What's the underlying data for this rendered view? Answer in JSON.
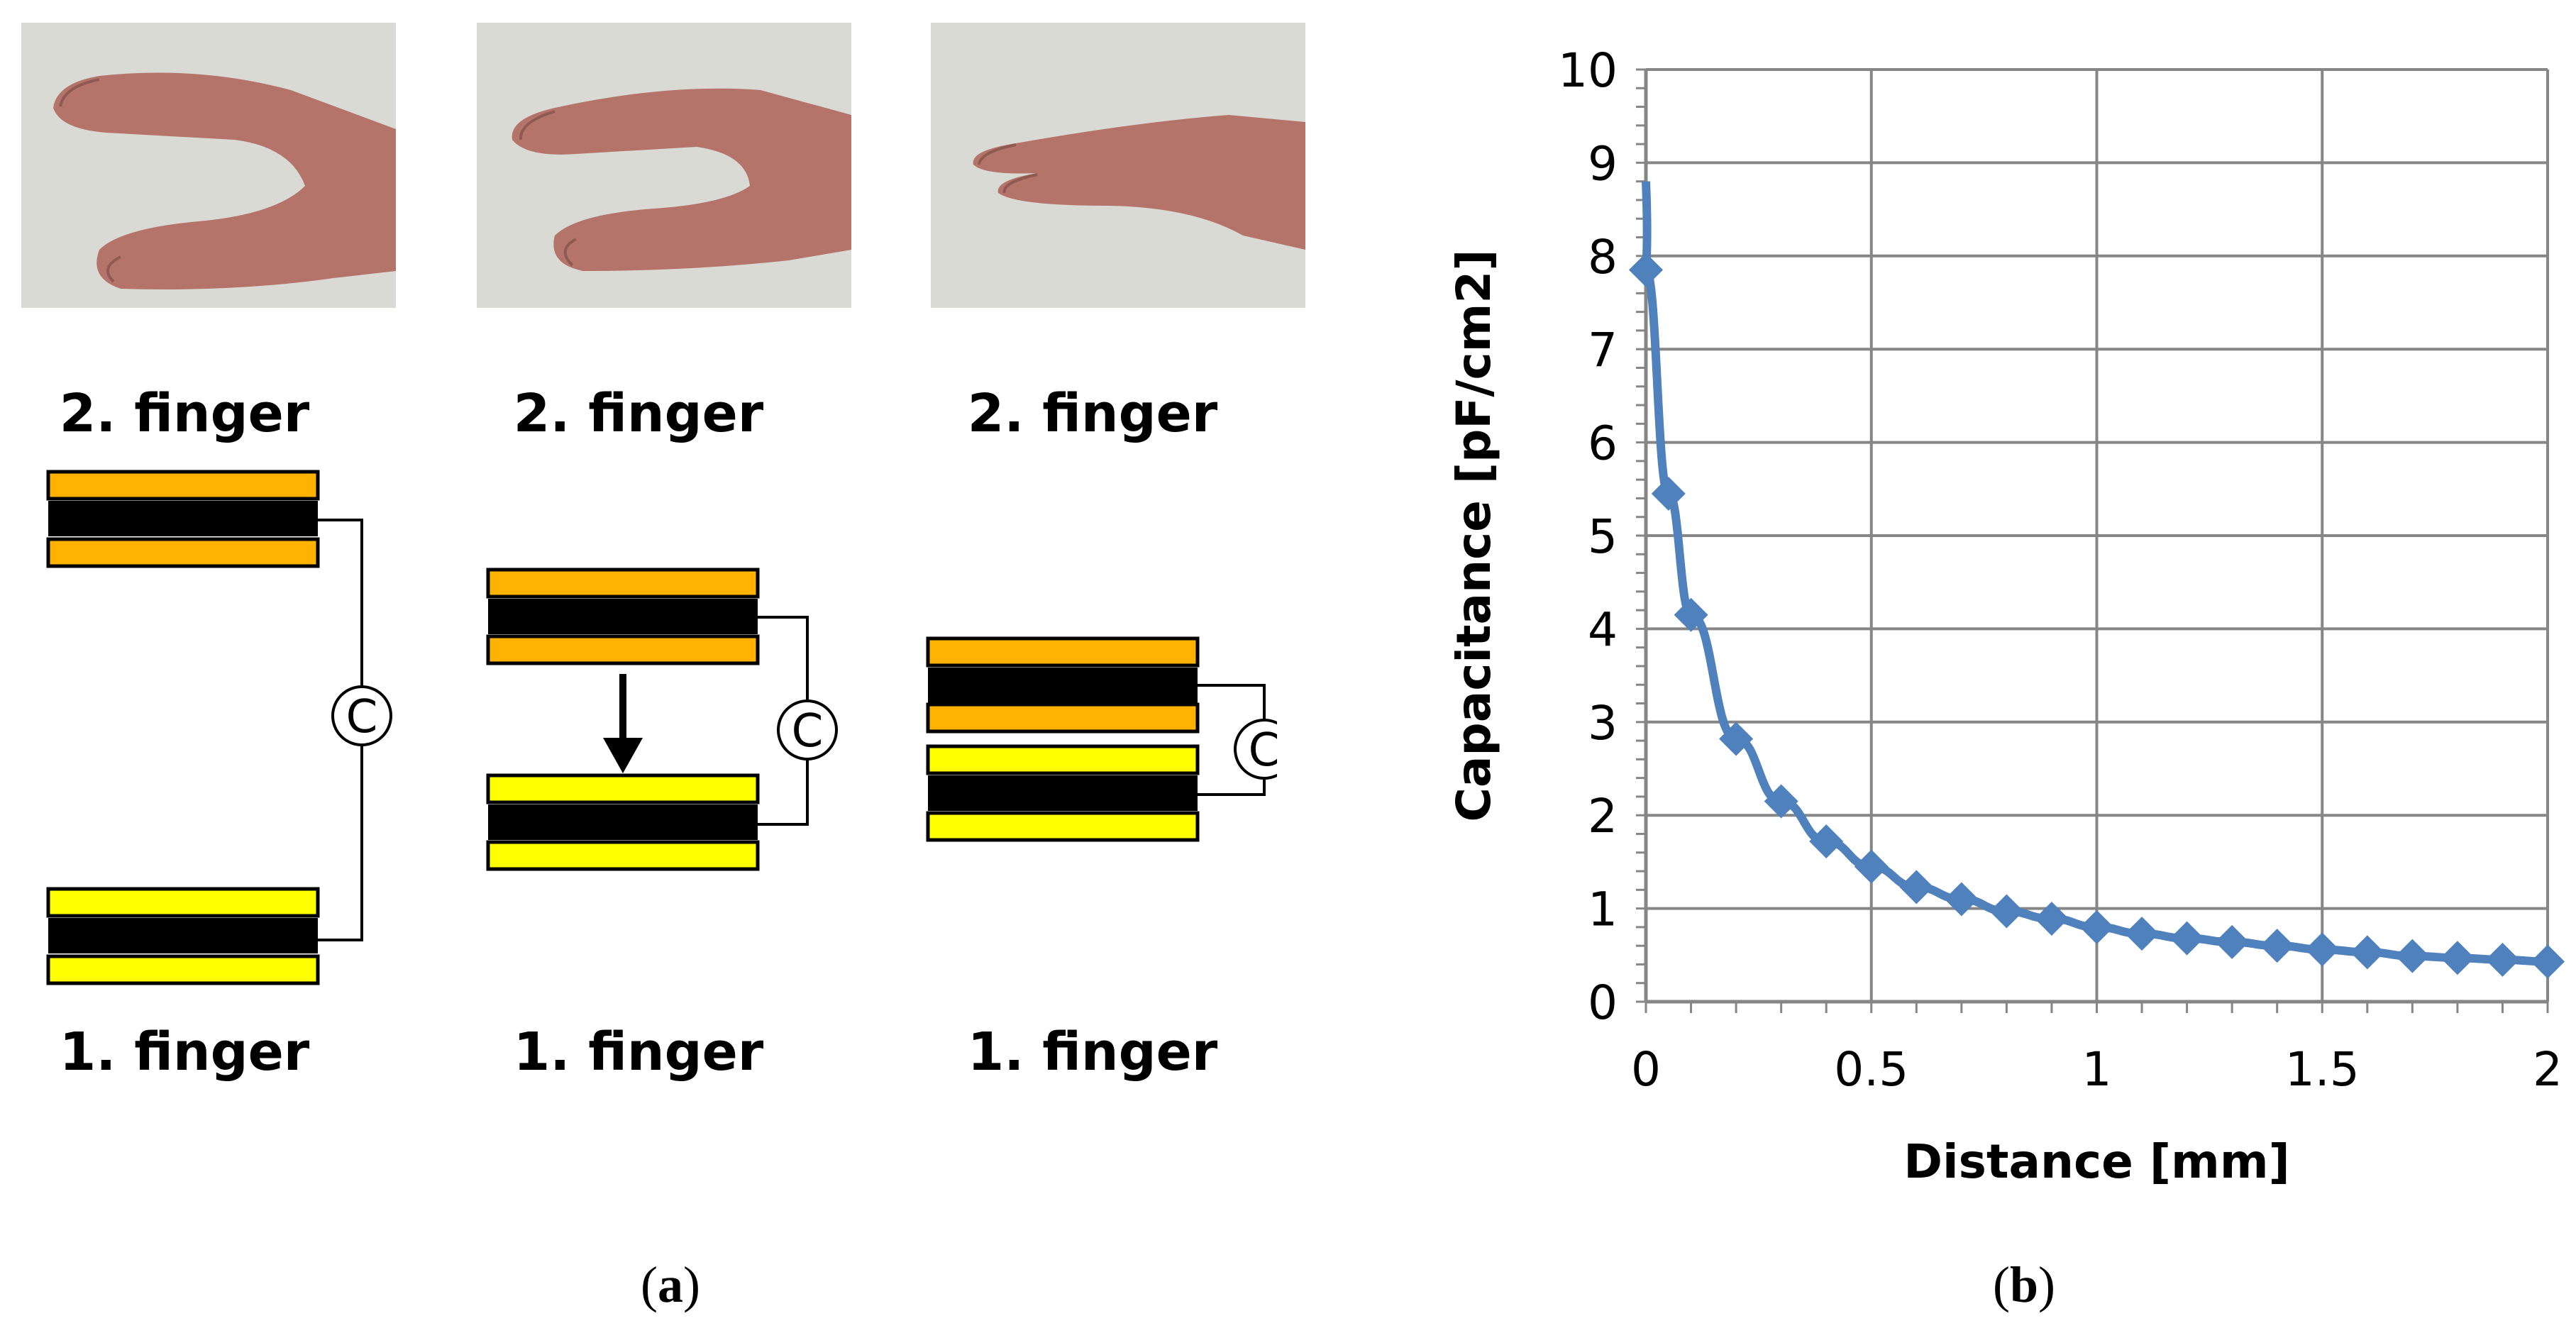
{
  "panel_a": {
    "upper_labels": [
      "2. finger",
      "2. finger",
      "2. finger"
    ],
    "lower_labels": [
      "1. finger",
      "1. finger",
      "1. finger"
    ],
    "capacitor_symbol": "C",
    "plate_colors": {
      "upper": "#ffb300",
      "lower": "#ffff00",
      "electrode": "#000000"
    },
    "photos": [
      "hand-photo-wide-gap",
      "hand-photo-medium-gap",
      "hand-photo-near-contact"
    ]
  },
  "captions": {
    "a": {
      "open": "(",
      "letter": "a",
      "close": ")"
    },
    "b": {
      "open": "(",
      "letter": "b",
      "close": ")"
    }
  },
  "chart_data": {
    "type": "line",
    "xlabel": "Distance [mm]",
    "ylabel": "Capacitance  [pF/cm2]",
    "xlim": [
      0,
      2
    ],
    "ylim": [
      0,
      10
    ],
    "x_ticks": [
      "0",
      "0.5",
      "1",
      "1.5",
      "2"
    ],
    "y_ticks": [
      "0",
      "1",
      "2",
      "3",
      "4",
      "5",
      "6",
      "7",
      "8",
      "9",
      "10"
    ],
    "grid": true,
    "line_color": "#4f81bd",
    "marker": "diamond",
    "series": [
      {
        "x": [
          0,
          0.05,
          0.1,
          0.2,
          0.3,
          0.4,
          0.5,
          0.6,
          0.7,
          0.8,
          0.9,
          1.0,
          1.1,
          1.2,
          1.3,
          1.4,
          1.5,
          1.6,
          1.7,
          1.8,
          1.9,
          2.0
        ],
        "y": [
          7.85,
          5.45,
          4.15,
          2.82,
          2.15,
          1.72,
          1.45,
          1.23,
          1.1,
          0.97,
          0.89,
          0.8,
          0.73,
          0.68,
          0.64,
          0.6,
          0.56,
          0.53,
          0.49,
          0.47,
          0.45,
          0.43
        ]
      }
    ]
  }
}
